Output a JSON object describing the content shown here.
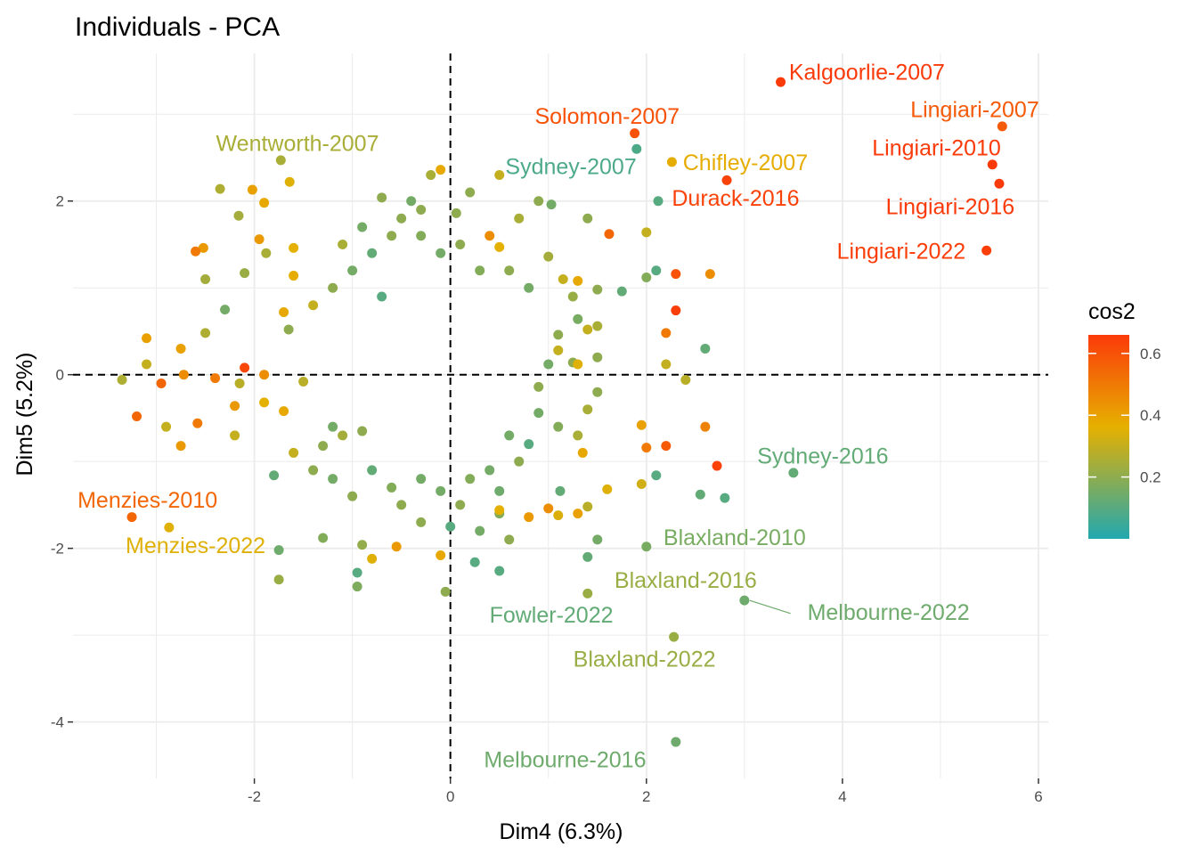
{
  "chart_data": {
    "type": "scatter",
    "title": "Individuals - PCA",
    "xlabel": "Dim4 (6.3%)",
    "ylabel": "Dim5 (5.2%)",
    "xlim": [
      -3.85,
      6.1
    ],
    "ylim": [
      -4.65,
      3.7
    ],
    "xticks": [
      -2,
      0,
      2,
      4,
      6
    ],
    "yticks": [
      -4,
      -2,
      0,
      2
    ],
    "grid": true,
    "reference_lines": {
      "x": 0,
      "y": 0
    },
    "color_variable": "cos2",
    "color_scale": {
      "range": [
        0.0,
        0.66
      ],
      "stops": [
        "#22a8b0",
        "#e6b000",
        "#fb3a0a"
      ],
      "ticks": [
        0.2,
        0.4,
        0.6
      ],
      "tick_labels": [
        "0.2",
        "0.4",
        "0.6"
      ],
      "legend_title": "cos2",
      "legend_position": "right"
    },
    "labeled_points": [
      {
        "label": "Kalgoorlie-2007",
        "x": 3.37,
        "y": 3.37,
        "cos2": 0.66,
        "label_x": 4.25,
        "label_y": 3.49
      },
      {
        "label": "Lingiari-2007",
        "x": 5.63,
        "y": 2.86,
        "cos2": 0.58,
        "label_x": 5.35,
        "label_y": 3.06
      },
      {
        "label": "Solomon-2007",
        "x": 1.88,
        "y": 2.78,
        "cos2": 0.6,
        "label_x": 1.6,
        "label_y": 2.98
      },
      {
        "label": "Lingiari-2010",
        "x": 5.53,
        "y": 2.42,
        "cos2": 0.66,
        "label_x": 4.96,
        "label_y": 2.62
      },
      {
        "label": "Wentworth-2007",
        "x": -1.73,
        "y": 2.47,
        "cos2": 0.25,
        "label_x": -1.56,
        "label_y": 2.67
      },
      {
        "label": "Chifley-2007",
        "x": 2.26,
        "y": 2.45,
        "cos2": 0.37,
        "label_x": 3.01,
        "label_y": 2.45
      },
      {
        "label": "Sydney-2007",
        "x": 1.9,
        "y": 2.6,
        "cos2": 0.08,
        "label_x": 1.23,
        "label_y": 2.4
      },
      {
        "label": "Durack-2016",
        "x": 2.82,
        "y": 2.24,
        "cos2": 0.64,
        "label_x": 2.91,
        "label_y": 2.04
      },
      {
        "label": "Lingiari-2016",
        "x": 5.6,
        "y": 2.2,
        "cos2": 0.66,
        "label_x": 5.1,
        "label_y": 1.94
      },
      {
        "label": "Lingiari-2022",
        "x": 5.47,
        "y": 1.43,
        "cos2": 0.65,
        "label_x": 4.6,
        "label_y": 1.43
      },
      {
        "label": "Menzies-2010",
        "x": -3.25,
        "y": -1.64,
        "cos2": 0.55,
        "label_x": -3.09,
        "label_y": -1.44
      },
      {
        "label": "Menzies-2022",
        "x": -2.87,
        "y": -1.76,
        "cos2": 0.35,
        "label_x": -2.6,
        "label_y": -1.96
      },
      {
        "label": "Sydney-2016",
        "x": 3.5,
        "y": -1.13,
        "cos2": 0.12,
        "label_x": 3.8,
        "label_y": -0.93
      },
      {
        "label": "Blaxland-2010",
        "x": 2.0,
        "y": -1.98,
        "cos2": 0.16,
        "label_x": 2.9,
        "label_y": -1.87
      },
      {
        "label": "Blaxland-2016",
        "x": 1.4,
        "y": -2.52,
        "cos2": 0.22,
        "label_x": 2.4,
        "label_y": -2.36
      },
      {
        "label": "Fowler-2022",
        "x": 1.4,
        "y": -2.1,
        "cos2": 0.12,
        "label_x": 1.03,
        "label_y": -2.76
      },
      {
        "label": "Melbourne-2022",
        "x": 3.0,
        "y": -2.6,
        "cos2": 0.14,
        "label_x": 4.47,
        "label_y": -2.73
      },
      {
        "label": "Blaxland-2022",
        "x": 2.28,
        "y": -3.02,
        "cos2": 0.22,
        "label_x": 1.98,
        "label_y": -3.27
      },
      {
        "label": "Melbourne-2016",
        "x": 2.3,
        "y": -4.23,
        "cos2": 0.14,
        "label_x": 1.17,
        "label_y": -4.43
      }
    ],
    "unlabeled_points": [
      [
        -1.64,
        2.22,
        0.35
      ],
      [
        -0.7,
        2.04,
        0.2
      ],
      [
        -0.1,
        2.36,
        0.38
      ],
      [
        0.06,
        1.86,
        0.2
      ],
      [
        1.03,
        1.96,
        0.15
      ],
      [
        2.12,
        2.0,
        0.1
      ],
      [
        0.5,
        1.47,
        0.36
      ],
      [
        1.62,
        1.62,
        0.55
      ],
      [
        2.0,
        1.64,
        0.3
      ],
      [
        -2.35,
        2.14,
        0.26
      ],
      [
        -2.02,
        2.13,
        0.4
      ],
      [
        -1.9,
        1.98,
        0.38
      ],
      [
        -2.16,
        1.83,
        0.24
      ],
      [
        -2.52,
        1.46,
        0.42
      ],
      [
        -2.6,
        1.42,
        0.5
      ],
      [
        -1.88,
        1.4,
        0.25
      ],
      [
        -2.1,
        1.17,
        0.22
      ],
      [
        -1.6,
        1.14,
        0.37
      ],
      [
        -1.6,
        1.46,
        0.36
      ],
      [
        -2.5,
        1.1,
        0.24
      ],
      [
        -1.95,
        1.56,
        0.42
      ],
      [
        -0.7,
        0.9,
        0.1
      ],
      [
        -1.7,
        0.72,
        0.38
      ],
      [
        -1.65,
        0.52,
        0.2
      ],
      [
        -2.3,
        0.75,
        0.15
      ],
      [
        -2.5,
        0.48,
        0.26
      ],
      [
        -3.1,
        0.42,
        0.4
      ],
      [
        -3.1,
        0.12,
        0.3
      ],
      [
        -2.75,
        0.3,
        0.4
      ],
      [
        -2.72,
        0.0,
        0.45
      ],
      [
        -2.4,
        -0.04,
        0.5
      ],
      [
        -2.15,
        -0.1,
        0.28
      ],
      [
        -3.35,
        -0.06,
        0.26
      ],
      [
        -2.95,
        -0.1,
        0.55
      ],
      [
        -2.75,
        -0.82,
        0.42
      ],
      [
        -3.2,
        -0.48,
        0.55
      ],
      [
        -2.9,
        -0.6,
        0.3
      ],
      [
        -2.58,
        -0.56,
        0.5
      ],
      [
        -2.2,
        -0.36,
        0.42
      ],
      [
        -1.9,
        -0.32,
        0.36
      ],
      [
        -2.1,
        0.08,
        0.63
      ],
      [
        -1.9,
        0.0,
        0.45
      ],
      [
        -1.7,
        -0.42,
        0.38
      ],
      [
        -1.5,
        -0.08,
        0.28
      ],
      [
        -1.3,
        -0.82,
        0.2
      ],
      [
        -1.1,
        -0.7,
        0.24
      ],
      [
        -0.9,
        -0.65,
        0.2
      ],
      [
        -1.2,
        -0.6,
        0.15
      ],
      [
        -1.75,
        -2.02,
        0.14
      ],
      [
        -1.75,
        -2.36,
        0.22
      ],
      [
        -1.3,
        -1.88,
        0.18
      ],
      [
        -0.95,
        -2.28,
        0.1
      ],
      [
        -0.95,
        -2.44,
        0.17
      ],
      [
        -0.9,
        -1.96,
        0.21
      ],
      [
        -0.8,
        -2.12,
        0.35
      ],
      [
        -0.55,
        -1.98,
        0.42
      ],
      [
        -0.1,
        -2.08,
        0.38
      ],
      [
        0.0,
        -1.75,
        0.1
      ],
      [
        -0.05,
        -2.5,
        0.2
      ],
      [
        0.25,
        -2.16,
        0.1
      ],
      [
        0.5,
        -2.26,
        0.1
      ],
      [
        0.5,
        -1.6,
        0.18
      ],
      [
        0.5,
        -1.34,
        0.14
      ],
      [
        0.5,
        -1.56,
        0.36
      ],
      [
        0.8,
        -1.64,
        0.42
      ],
      [
        1.0,
        -1.54,
        0.45
      ],
      [
        1.1,
        -1.62,
        0.34
      ],
      [
        1.12,
        -1.34,
        0.12
      ],
      [
        1.3,
        -1.6,
        0.4
      ],
      [
        1.4,
        -1.52,
        0.28
      ],
      [
        1.6,
        -1.32,
        0.35
      ],
      [
        1.95,
        -1.26,
        0.32
      ],
      [
        2.1,
        -1.16,
        0.1
      ],
      [
        2.55,
        -1.38,
        0.12
      ],
      [
        2.8,
        -1.42,
        0.1
      ],
      [
        1.35,
        -0.9,
        0.38
      ],
      [
        1.95,
        -0.58,
        0.4
      ],
      [
        2.0,
        -0.84,
        0.5
      ],
      [
        2.2,
        -0.82,
        0.58
      ],
      [
        2.6,
        -0.6,
        0.48
      ],
      [
        2.72,
        -1.05,
        0.64
      ],
      [
        2.2,
        0.12,
        0.3
      ],
      [
        2.4,
        -0.06,
        0.28
      ],
      [
        2.6,
        0.3,
        0.12
      ],
      [
        2.2,
        0.48,
        0.5
      ],
      [
        2.3,
        0.74,
        0.65
      ],
      [
        2.3,
        1.16,
        0.6
      ],
      [
        2.65,
        1.16,
        0.45
      ],
      [
        2.1,
        1.2,
        0.1
      ],
      [
        2.0,
        1.12,
        0.18
      ],
      [
        1.75,
        0.96,
        0.12
      ],
      [
        1.5,
        0.98,
        0.2
      ],
      [
        1.3,
        1.08,
        0.38
      ],
      [
        1.0,
        1.36,
        0.24
      ],
      [
        1.15,
        1.1,
        0.3
      ],
      [
        1.25,
        0.9,
        0.22
      ],
      [
        1.3,
        0.64,
        0.16
      ],
      [
        1.4,
        0.52,
        0.3
      ],
      [
        1.5,
        0.56,
        0.25
      ],
      [
        1.5,
        0.2,
        0.2
      ],
      [
        1.25,
        0.14,
        0.2
      ],
      [
        1.0,
        0.12,
        0.15
      ],
      [
        1.1,
        0.46,
        0.2
      ],
      [
        1.1,
        0.28,
        0.3
      ],
      [
        1.3,
        0.12,
        0.35
      ],
      [
        1.4,
        -0.4,
        0.25
      ],
      [
        1.5,
        -0.2,
        0.2
      ],
      [
        0.9,
        -0.14,
        0.2
      ],
      [
        0.9,
        -0.44,
        0.15
      ],
      [
        1.1,
        -0.6,
        0.18
      ],
      [
        1.3,
        -0.7,
        0.25
      ],
      [
        0.8,
        -0.8,
        0.1
      ],
      [
        0.6,
        -0.7,
        0.15
      ],
      [
        0.7,
        -1.0,
        0.2
      ],
      [
        0.4,
        -1.1,
        0.15
      ],
      [
        0.2,
        -1.2,
        0.18
      ],
      [
        0.1,
        -1.5,
        0.2
      ],
      [
        -0.1,
        -1.34,
        0.15
      ],
      [
        -0.3,
        -1.2,
        0.15
      ],
      [
        -0.5,
        -1.5,
        0.2
      ],
      [
        -0.6,
        -1.3,
        0.18
      ],
      [
        -0.8,
        -1.1,
        0.12
      ],
      [
        -1.0,
        -1.4,
        0.2
      ],
      [
        -1.2,
        -1.2,
        0.15
      ],
      [
        -1.4,
        -1.1,
        0.2
      ],
      [
        -1.6,
        -0.9,
        0.3
      ],
      [
        -1.8,
        -1.16,
        0.12
      ],
      [
        -2.2,
        -0.7,
        0.3
      ],
      [
        -0.5,
        1.8,
        0.2
      ],
      [
        -0.3,
        1.6,
        0.18
      ],
      [
        -0.1,
        1.4,
        0.15
      ],
      [
        0.1,
        1.5,
        0.2
      ],
      [
        0.3,
        1.2,
        0.18
      ],
      [
        0.6,
        1.2,
        0.2
      ],
      [
        0.8,
        1.0,
        0.15
      ],
      [
        0.5,
        2.3,
        0.3
      ],
      [
        0.2,
        2.1,
        0.2
      ],
      [
        -0.2,
        2.3,
        0.25
      ],
      [
        -0.4,
        2.0,
        0.15
      ],
      [
        -0.6,
        1.6,
        0.2
      ],
      [
        -0.8,
        1.4,
        0.12
      ],
      [
        -1.0,
        1.2,
        0.15
      ],
      [
        -1.2,
        1.0,
        0.2
      ],
      [
        -1.4,
        0.8,
        0.3
      ],
      [
        -0.9,
        1.7,
        0.15
      ],
      [
        -1.1,
        1.5,
        0.25
      ],
      [
        0.9,
        2.0,
        0.2
      ],
      [
        0.7,
        1.8,
        0.25
      ],
      [
        1.4,
        1.8,
        0.2
      ],
      [
        0.6,
        -1.9,
        0.2
      ],
      [
        1.5,
        -1.9,
        0.15
      ],
      [
        0.3,
        -1.8,
        0.15
      ],
      [
        -0.3,
        -1.7,
        0.2
      ],
      [
        0.4,
        1.6,
        0.45
      ],
      [
        -0.3,
        1.9,
        0.2
      ]
    ]
  }
}
